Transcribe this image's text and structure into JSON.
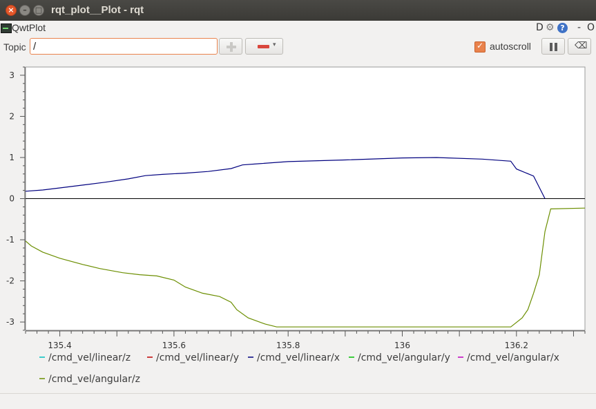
{
  "window": {
    "title": "rqt_plot__Plot - rqt",
    "close_glyph": "×",
    "min_glyph": "–",
    "max_glyph": "□"
  },
  "plugin": {
    "title": "QwtPlot",
    "d_label": "D",
    "gear_glyph": "⚙",
    "help_glyph": "?",
    "minus_label": "-",
    "o_label": "O"
  },
  "toolbar": {
    "topic_label": "Topic",
    "topic_value": "/",
    "add_icon": "add-icon",
    "remove_icon": "remove-icon",
    "dropdown_glyph": "▾",
    "autoscroll_checked": true,
    "check_glyph": "✓",
    "autoscroll_label": "autoscroll",
    "pause_icon": "pause-icon",
    "clear_glyph": "⌫",
    "accent_color": "#e9824c"
  },
  "chart_data": {
    "type": "line",
    "x_ticks": [
      135.4,
      135.6,
      135.8,
      136,
      136.2
    ],
    "x_tick_labels": [
      "135.4",
      "135.6",
      "135.8",
      "136",
      "136.2"
    ],
    "y_ticks": [
      3,
      2,
      1,
      0,
      -1,
      -2,
      -3
    ],
    "y_tick_labels": [
      "3",
      "2",
      "1",
      "0",
      "-1",
      "-2",
      "-3"
    ],
    "xlim": [
      135.34,
      136.32
    ],
    "ylim": [
      -3.2,
      3.2
    ],
    "grid": false,
    "legend_position": "bottom",
    "series": [
      {
        "name": "/cmd_vel/linear/z",
        "color": "#00bfbf",
        "points": []
      },
      {
        "name": "/cmd_vel/linear/y",
        "color": "#bf0000",
        "points": []
      },
      {
        "name": "/cmd_vel/linear/x",
        "color": "#00007f",
        "points": [
          [
            135.34,
            0.18
          ],
          [
            135.37,
            0.21
          ],
          [
            135.4,
            0.26
          ],
          [
            135.44,
            0.33
          ],
          [
            135.48,
            0.4
          ],
          [
            135.52,
            0.48
          ],
          [
            135.55,
            0.56
          ],
          [
            135.58,
            0.59
          ],
          [
            135.62,
            0.62
          ],
          [
            135.66,
            0.66
          ],
          [
            135.7,
            0.73
          ],
          [
            135.72,
            0.82
          ],
          [
            135.75,
            0.85
          ],
          [
            135.8,
            0.9
          ],
          [
            135.9,
            0.94
          ],
          [
            136.0,
            0.99
          ],
          [
            136.06,
            1.0
          ],
          [
            136.14,
            0.96
          ],
          [
            136.19,
            0.91
          ],
          [
            136.2,
            0.72
          ],
          [
            136.23,
            0.55
          ],
          [
            136.25,
            0.0
          ]
        ]
      },
      {
        "name": "/cmd_vel/angular/y",
        "color": "#00bf00",
        "points": []
      },
      {
        "name": "/cmd_vel/angular/x",
        "color": "#bf00bf",
        "points": []
      },
      {
        "name": "/cmd_vel/angular/z",
        "color": "#6b8e00",
        "points": [
          [
            135.34,
            -1.03
          ],
          [
            135.35,
            -1.15
          ],
          [
            135.37,
            -1.3
          ],
          [
            135.4,
            -1.45
          ],
          [
            135.44,
            -1.6
          ],
          [
            135.47,
            -1.7
          ],
          [
            135.51,
            -1.8
          ],
          [
            135.54,
            -1.85
          ],
          [
            135.57,
            -1.88
          ],
          [
            135.6,
            -1.98
          ],
          [
            135.62,
            -2.15
          ],
          [
            135.65,
            -2.3
          ],
          [
            135.68,
            -2.38
          ],
          [
            135.7,
            -2.52
          ],
          [
            135.71,
            -2.7
          ],
          [
            135.73,
            -2.9
          ],
          [
            135.76,
            -3.05
          ],
          [
            135.78,
            -3.12
          ],
          [
            135.85,
            -3.12
          ],
          [
            136.0,
            -3.12
          ],
          [
            136.1,
            -3.12
          ],
          [
            136.19,
            -3.12
          ],
          [
            136.21,
            -2.9
          ],
          [
            136.22,
            -2.7
          ],
          [
            136.23,
            -2.3
          ],
          [
            136.24,
            -1.85
          ],
          [
            136.25,
            -0.8
          ],
          [
            136.26,
            -0.25
          ],
          [
            136.32,
            -0.23
          ]
        ]
      }
    ],
    "zero_line": 0
  }
}
